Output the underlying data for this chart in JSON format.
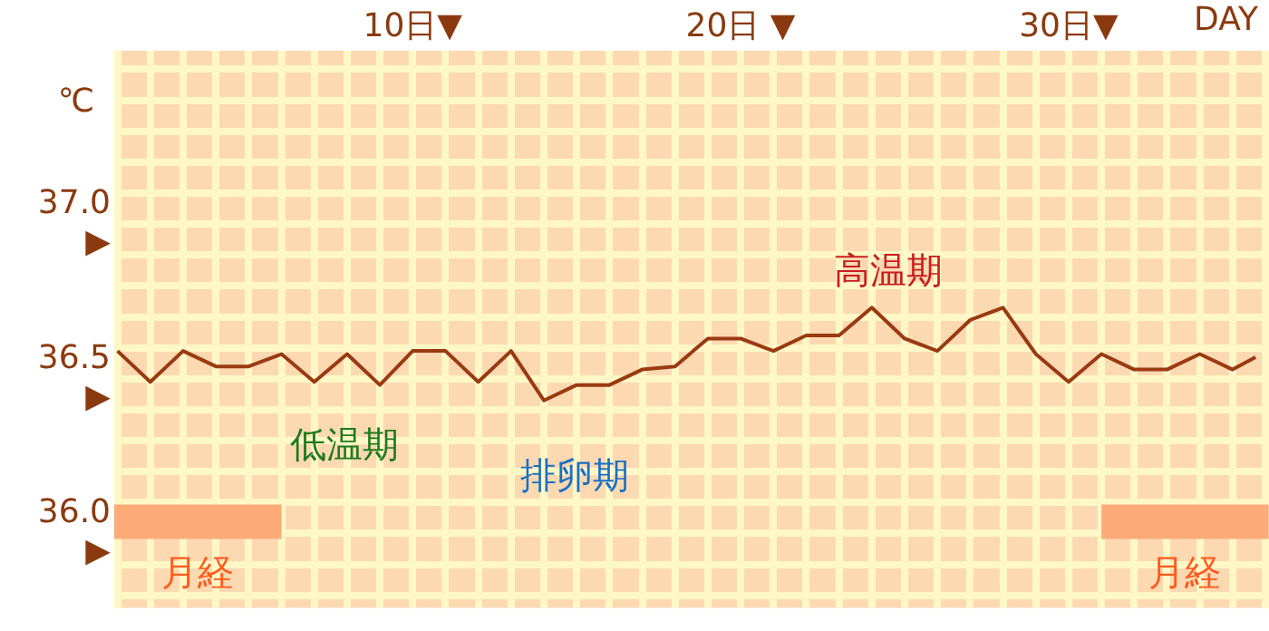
{
  "chart_data": {
    "type": "line",
    "xlabel": "DAY",
    "ylabel": "℃",
    "x": [
      1,
      2,
      3,
      4,
      5,
      6,
      7,
      8,
      9,
      10,
      11,
      12,
      13,
      14,
      15,
      16,
      17,
      18,
      19,
      20,
      21,
      22,
      23,
      24,
      25,
      26,
      27,
      28,
      29,
      30,
      31,
      32,
      33,
      34,
      35,
      35.7
    ],
    "series": [
      {
        "color": "#9a3a12",
        "values": [
          36.59,
          36.49,
          36.59,
          36.54,
          36.54,
          36.58,
          36.49,
          36.58,
          36.48,
          36.59,
          36.59,
          36.49,
          36.59,
          36.43,
          36.48,
          36.48,
          36.53,
          36.54,
          36.63,
          36.63,
          36.59,
          36.64,
          36.64,
          36.73,
          36.63,
          36.59,
          36.69,
          36.73,
          36.58,
          36.49,
          36.58,
          36.53,
          36.53,
          36.58,
          36.53,
          36.57
        ]
      }
    ],
    "xlim": [
      0.9,
      36.1
    ],
    "xticks": [
      {
        "value": 1,
        "label": null
      },
      {
        "value": 2,
        "label": null
      },
      {
        "value": 3,
        "label": null
      },
      {
        "value": 4,
        "label": null
      },
      {
        "value": 5,
        "label": null
      },
      {
        "value": 6,
        "label": null
      },
      {
        "value": 7,
        "label": null
      },
      {
        "value": 8,
        "label": null
      },
      {
        "value": 9,
        "label": null
      },
      {
        "value": 10,
        "label": "10日▼"
      },
      {
        "value": 11,
        "label": null
      },
      {
        "value": 12,
        "label": null
      },
      {
        "value": 13,
        "label": null
      },
      {
        "value": 14,
        "label": null
      },
      {
        "value": 15,
        "label": null
      },
      {
        "value": 16,
        "label": null
      },
      {
        "value": 17,
        "label": null
      },
      {
        "value": 18,
        "label": null
      },
      {
        "value": 19,
        "label": null
      },
      {
        "value": 20,
        "label": "20日 ▼"
      },
      {
        "value": 21,
        "label": null
      },
      {
        "value": 22,
        "label": null
      },
      {
        "value": 23,
        "label": null
      },
      {
        "value": 24,
        "label": null
      },
      {
        "value": 25,
        "label": null
      },
      {
        "value": 26,
        "label": null
      },
      {
        "value": 27,
        "label": null
      },
      {
        "value": 28,
        "label": null
      },
      {
        "value": 29,
        "label": null
      },
      {
        "value": 30,
        "label": "30日▼"
      },
      {
        "value": 31,
        "label": null
      },
      {
        "value": 32,
        "label": null
      },
      {
        "value": 33,
        "label": null
      },
      {
        "value": 34,
        "label": null
      },
      {
        "value": 35,
        "label": null
      },
      {
        "value": 36,
        "label": null
      }
    ],
    "ylim": [
      35.76,
      37.56
    ],
    "yticks": [
      {
        "value": 35.8,
        "label": null
      },
      {
        "value": 35.9,
        "label": null
      },
      {
        "value": 36.0,
        "label": "36.0\n▶"
      },
      {
        "value": 36.1,
        "label": null
      },
      {
        "value": 36.2,
        "label": null
      },
      {
        "value": 36.3,
        "label": null
      },
      {
        "value": 36.4,
        "label": null
      },
      {
        "value": 36.5,
        "label": "36.5\n▶"
      },
      {
        "value": 36.6,
        "label": null
      },
      {
        "value": 36.7,
        "label": null
      },
      {
        "value": 36.8,
        "label": null
      },
      {
        "value": 36.9,
        "label": null
      },
      {
        "value": 37.0,
        "label": "37.0\n▶"
      },
      {
        "value": 37.1,
        "label": null
      },
      {
        "value": 37.2,
        "label": null
      },
      {
        "value": 37.3,
        "label": null
      },
      {
        "value": 37.4,
        "label": null
      },
      {
        "value": 37.5,
        "label": null
      }
    ],
    "bands": [
      {
        "axis": "x",
        "from": 0.9,
        "to": 6,
        "label": "月経",
        "color": "#fdab78"
      },
      {
        "axis": "x",
        "from": 31,
        "to": 36.1,
        "label": "月経",
        "color": "#fdab78"
      }
    ],
    "annotations": [
      "低温期",
      "排卵期",
      "高温期"
    ],
    "grid": true,
    "legend": false,
    "marker": "none",
    "line_style": "solid"
  }
}
